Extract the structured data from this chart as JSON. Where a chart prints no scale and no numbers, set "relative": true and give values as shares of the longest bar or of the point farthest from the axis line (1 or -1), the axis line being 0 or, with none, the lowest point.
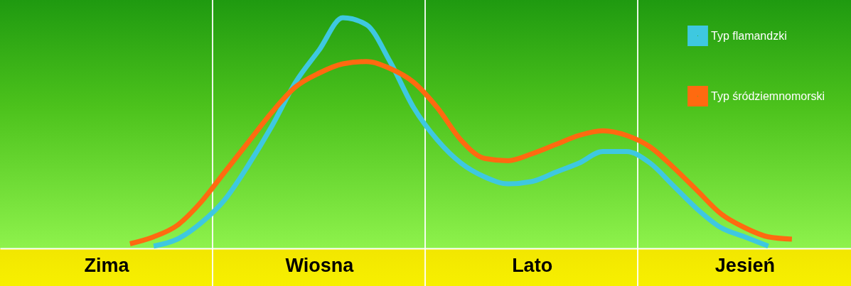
{
  "chart_data": {
    "type": "line",
    "relative": true,
    "legend": "top right",
    "categories": [
      null,
      null,
      null,
      null,
      "Zima",
      null,
      null,
      null,
      null,
      null,
      null,
      null,
      null,
      "Wiosna",
      null,
      null,
      null,
      null,
      null,
      null,
      null,
      null,
      "Lato",
      null,
      null,
      null,
      null,
      null,
      null,
      null,
      null,
      "Jesień",
      null,
      null,
      null,
      null
    ],
    "series": [
      {
        "name": "Typ flamandzki",
        "color": "#3ec8e0",
        "values": [
          null,
          null,
          null,
          null,
          null,
          null,
          0.01,
          0.04,
          0.11,
          0.21,
          0.36,
          0.53,
          0.72,
          0.86,
          1,
          0.97,
          0.81,
          0.61,
          0.47,
          0.37,
          0.31,
          0.28,
          0.29,
          0.33,
          0.37,
          0.42,
          0.42,
          0.37,
          0.27,
          0.17,
          0.09,
          0.05,
          0.01,
          null,
          null,
          null
        ]
      },
      {
        "name": "Typ śródziemnomorski",
        "color": "#ff6a10",
        "values": [
          null,
          null,
          null,
          null,
          null,
          0.02,
          0.05,
          0.1,
          0.2,
          0.33,
          0.46,
          0.59,
          0.7,
          0.76,
          0.8,
          0.81,
          0.78,
          0.72,
          0.61,
          0.47,
          0.39,
          0.38,
          0.41,
          0.45,
          0.49,
          0.51,
          0.49,
          0.44,
          0.35,
          0.25,
          0.15,
          0.09,
          0.05,
          0.04,
          null,
          null
        ]
      }
    ]
  }
}
